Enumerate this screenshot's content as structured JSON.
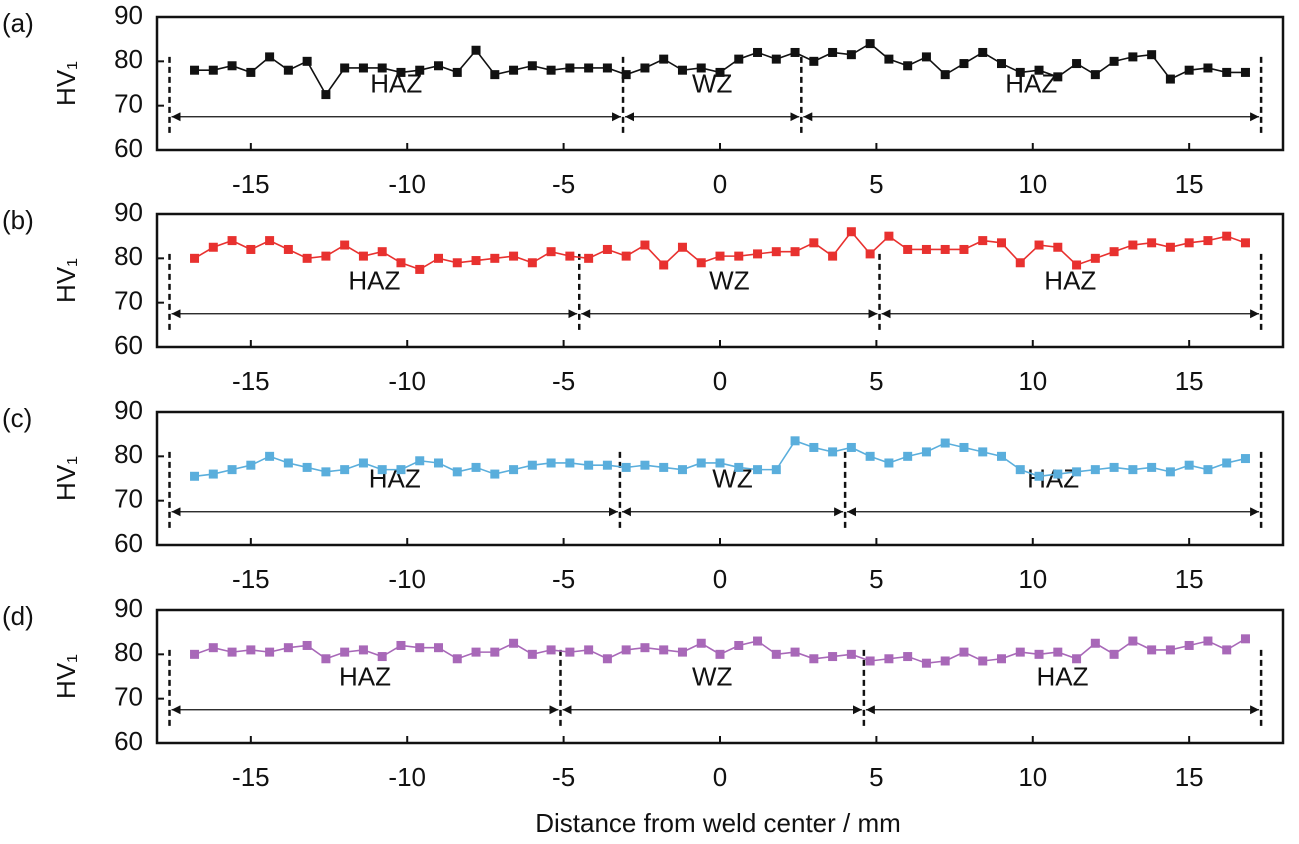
{
  "chart_data": [
    {
      "type": "line",
      "panel_label": "(a)",
      "ylabel": "HV₁",
      "x": [
        -16.8,
        -16.2,
        -15.6,
        -15.0,
        -14.4,
        -13.8,
        -13.2,
        -12.6,
        -12.0,
        -11.4,
        -10.8,
        -10.2,
        -9.6,
        -9.0,
        -8.4,
        -7.8,
        -7.2,
        -6.6,
        -6.0,
        -5.4,
        -4.8,
        -4.2,
        -3.6,
        -3.0,
        -2.4,
        -1.8,
        -1.2,
        -0.6,
        0.0,
        0.6,
        1.2,
        1.8,
        2.4,
        3.0,
        3.6,
        4.2,
        4.8,
        5.4,
        6.0,
        6.6,
        7.2,
        7.8,
        8.4,
        9.0,
        9.6,
        10.2,
        10.8,
        11.4,
        12.0,
        12.6,
        13.2,
        13.8,
        14.4,
        15.0,
        15.6,
        16.2,
        16.8
      ],
      "series": [
        {
          "color": "#111111",
          "values": [
            78,
            78,
            79,
            77.5,
            81,
            78,
            80,
            72.5,
            78.5,
            78.5,
            78.5,
            77.5,
            78,
            79,
            77.5,
            82.5,
            77,
            78,
            79,
            78,
            78.5,
            78.5,
            78.5,
            77,
            78.5,
            80.5,
            78,
            78.5,
            77.5,
            80.5,
            82,
            80.5,
            82,
            80,
            82,
            81.5,
            84,
            80.5,
            79,
            81,
            77,
            79.5,
            82,
            79.5,
            77.5,
            78,
            76.5,
            79.5,
            77,
            80,
            81,
            81.5,
            76,
            78,
            78.5,
            77.5,
            77.5
          ]
        }
      ],
      "xlim": [
        -18,
        18
      ],
      "ylim": [
        60,
        90
      ],
      "xticks": [
        -15,
        -10,
        -5,
        0,
        5,
        10,
        15
      ],
      "yticks": [
        60,
        70,
        80,
        90
      ],
      "zones": {
        "boundaries": [
          -17.6,
          -3.1,
          2.6,
          17.3
        ],
        "labels": [
          "HAZ",
          "WZ",
          "HAZ"
        ]
      }
    },
    {
      "type": "line",
      "panel_label": "(b)",
      "ylabel": "HV₁",
      "x": [
        -16.8,
        -16.2,
        -15.6,
        -15.0,
        -14.4,
        -13.8,
        -13.2,
        -12.6,
        -12.0,
        -11.4,
        -10.8,
        -10.2,
        -9.6,
        -9.0,
        -8.4,
        -7.8,
        -7.2,
        -6.6,
        -6.0,
        -5.4,
        -4.8,
        -4.2,
        -3.6,
        -3.0,
        -2.4,
        -1.8,
        -1.2,
        -0.6,
        0.0,
        0.6,
        1.2,
        1.8,
        2.4,
        3.0,
        3.6,
        4.2,
        4.8,
        5.4,
        6.0,
        6.6,
        7.2,
        7.8,
        8.4,
        9.0,
        9.6,
        10.2,
        10.8,
        11.4,
        12.0,
        12.6,
        13.2,
        13.8,
        14.4,
        15.0,
        15.6,
        16.2,
        16.8
      ],
      "series": [
        {
          "color": "#e8312f",
          "values": [
            80,
            82.5,
            84,
            82,
            84,
            82,
            80,
            80.5,
            83,
            80.5,
            81.5,
            79,
            77.5,
            80,
            79,
            79.5,
            80,
            80.5,
            79,
            81.5,
            80.5,
            80,
            82,
            80.5,
            83,
            78.5,
            82.5,
            79,
            80.5,
            80.5,
            81,
            81.5,
            81.5,
            83.5,
            80.5,
            86,
            81,
            85,
            82,
            82,
            82,
            82,
            84,
            83.5,
            79,
            83,
            82.5,
            78.5,
            80,
            81.5,
            83,
            83.5,
            82.5,
            83.5,
            84,
            85,
            83.5
          ]
        }
      ],
      "xlim": [
        -18,
        18
      ],
      "ylim": [
        60,
        90
      ],
      "xticks": [
        -15,
        -10,
        -5,
        0,
        5,
        10,
        15
      ],
      "yticks": [
        60,
        70,
        80,
        90
      ],
      "zones": {
        "boundaries": [
          -17.6,
          -4.5,
          5.1,
          17.3
        ],
        "labels": [
          "HAZ",
          "WZ",
          "HAZ"
        ]
      }
    },
    {
      "type": "line",
      "panel_label": "(c)",
      "ylabel": "HV₁",
      "x": [
        -16.8,
        -16.2,
        -15.6,
        -15.0,
        -14.4,
        -13.8,
        -13.2,
        -12.6,
        -12.0,
        -11.4,
        -10.8,
        -10.2,
        -9.6,
        -9.0,
        -8.4,
        -7.8,
        -7.2,
        -6.6,
        -6.0,
        -5.4,
        -4.8,
        -4.2,
        -3.6,
        -3.0,
        -2.4,
        -1.8,
        -1.2,
        -0.6,
        0.0,
        0.6,
        1.2,
        1.8,
        2.4,
        3.0,
        3.6,
        4.2,
        4.8,
        5.4,
        6.0,
        6.6,
        7.2,
        7.8,
        8.4,
        9.0,
        9.6,
        10.2,
        10.8,
        11.4,
        12.0,
        12.6,
        13.2,
        13.8,
        14.4,
        15.0,
        15.6,
        16.2,
        16.8
      ],
      "series": [
        {
          "color": "#5aaedc",
          "values": [
            75.5,
            76,
            77,
            78,
            80,
            78.5,
            77.5,
            76.5,
            77,
            78.5,
            77,
            77,
            79,
            78.5,
            76.5,
            77.5,
            76,
            77,
            78,
            78.5,
            78.5,
            78,
            78,
            77.5,
            78,
            77.5,
            77,
            78.5,
            78.5,
            77.5,
            77,
            77,
            83.5,
            82,
            81,
            82,
            80,
            78.5,
            80,
            81,
            83,
            82,
            81,
            80,
            77,
            75.5,
            76,
            76.5,
            77,
            77.5,
            77,
            77.5,
            76.5,
            78,
            77,
            78.5,
            79.5
          ]
        }
      ],
      "xlim": [
        -18,
        18
      ],
      "ylim": [
        60,
        90
      ],
      "xticks": [
        -15,
        -10,
        -5,
        0,
        5,
        10,
        15
      ],
      "yticks": [
        60,
        70,
        80,
        90
      ],
      "zones": {
        "boundaries": [
          -17.6,
          -3.2,
          4.0,
          17.3
        ],
        "labels": [
          "HAZ",
          "WZ",
          "HAZ"
        ]
      }
    },
    {
      "type": "line",
      "panel_label": "(d)",
      "ylabel": "HV₁",
      "xlabel": "Distance from weld center / mm",
      "x": [
        -16.8,
        -16.2,
        -15.6,
        -15.0,
        -14.4,
        -13.8,
        -13.2,
        -12.6,
        -12.0,
        -11.4,
        -10.8,
        -10.2,
        -9.6,
        -9.0,
        -8.4,
        -7.8,
        -7.2,
        -6.6,
        -6.0,
        -5.4,
        -4.8,
        -4.2,
        -3.6,
        -3.0,
        -2.4,
        -1.8,
        -1.2,
        -0.6,
        0.0,
        0.6,
        1.2,
        1.8,
        2.4,
        3.0,
        3.6,
        4.2,
        4.8,
        5.4,
        6.0,
        6.6,
        7.2,
        7.8,
        8.4,
        9.0,
        9.6,
        10.2,
        10.8,
        11.4,
        12.0,
        12.6,
        13.2,
        13.8,
        14.4,
        15.0,
        15.6,
        16.2,
        16.8
      ],
      "series": [
        {
          "color": "#a868b8",
          "values": [
            80,
            81.5,
            80.5,
            81,
            80.5,
            81.5,
            82,
            79,
            80.5,
            81,
            79.5,
            82,
            81.5,
            81.5,
            79,
            80.5,
            80.5,
            82.5,
            80,
            81,
            80.5,
            81,
            79,
            81,
            81.5,
            81,
            80.5,
            82.5,
            80,
            82,
            83,
            80,
            80.5,
            79,
            79.5,
            80,
            78.5,
            79,
            79.5,
            78,
            78.5,
            80.5,
            78.5,
            79,
            80.5,
            80,
            80.5,
            79,
            82.5,
            80,
            83,
            81,
            81,
            82,
            83,
            81,
            83.5
          ]
        }
      ],
      "xlim": [
        -18,
        18
      ],
      "ylim": [
        60,
        90
      ],
      "xticks": [
        -15,
        -10,
        -5,
        0,
        5,
        10,
        15
      ],
      "yticks": [
        60,
        70,
        80,
        90
      ],
      "zones": {
        "boundaries": [
          -17.6,
          -5.1,
          4.6,
          17.3
        ],
        "labels": [
          "HAZ",
          "WZ",
          "HAZ"
        ]
      }
    }
  ]
}
